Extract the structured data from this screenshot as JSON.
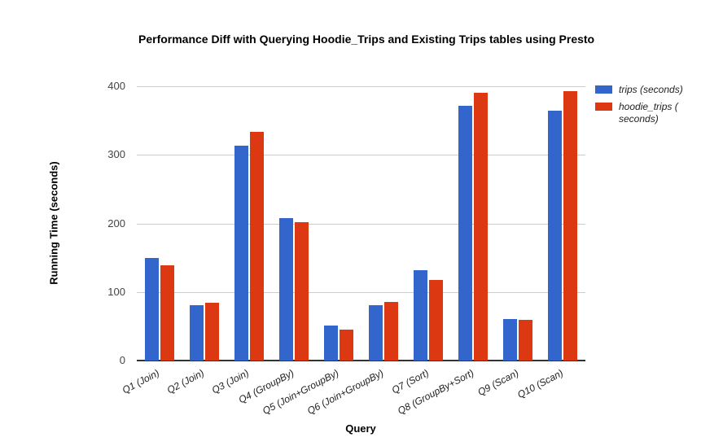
{
  "chart_data": {
    "type": "bar",
    "title": "Performance Diff with Querying Hoodie_Trips and Existing Trips tables using Presto",
    "xlabel": "Query",
    "ylabel": "Running Time (seconds)",
    "categories": [
      "Q1 (Join)",
      "Q2 (Join)",
      "Q3 (Join)",
      "Q4 (GroupBy)",
      "Q5 (Join+GroupBy)",
      "Q6 (Join+GroupBy)",
      "Q7 (Sort)",
      "Q8 (GroupBy+Sort)",
      "Q9 (Scan)",
      "Q10 (Scan)"
    ],
    "series": [
      {
        "name": "trips (seconds)",
        "color": "#3366cc",
        "values": [
          150,
          81,
          314,
          208,
          51,
          81,
          132,
          372,
          61,
          364
        ]
      },
      {
        "name": "hoodie_trips ( seconds)",
        "color": "#dc3912",
        "values": [
          139,
          84,
          333,
          202,
          45,
          85,
          118,
          390,
          59,
          393
        ]
      }
    ],
    "ylim": [
      0,
      400
    ],
    "yticks": [
      0,
      100,
      200,
      300,
      400
    ],
    "grid": true,
    "legend_position": "right",
    "gridline_color": "#cccccc",
    "axisline_color": "#333333",
    "background_color": "#ffffff"
  }
}
